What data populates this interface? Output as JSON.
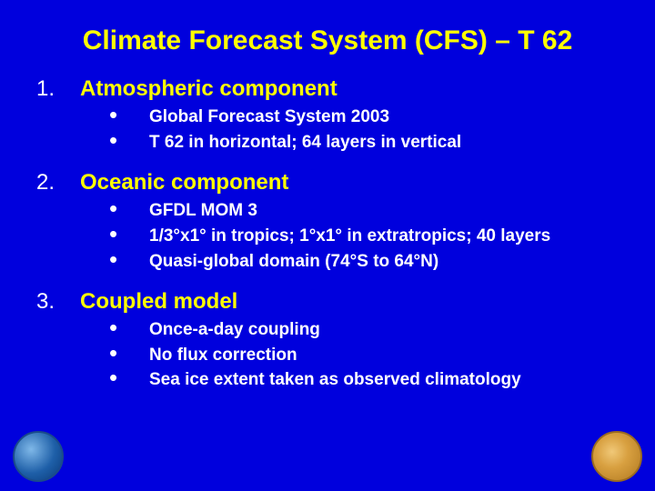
{
  "title": "Climate Forecast System (CFS) – T 62",
  "sections": [
    {
      "num": "1.",
      "heading": "Atmospheric component",
      "bullets": [
        "Global Forecast System 2003",
        "T 62 in horizontal; 64 layers in vertical"
      ]
    },
    {
      "num": "2.",
      "heading": "Oceanic component",
      "bullets": [
        "GFDL MOM 3",
        "1/3°x1° in tropics; 1°x1° in extratropics; 40 layers",
        "Quasi-global domain (74°S to 64°N)"
      ]
    },
    {
      "num": "3.",
      "heading": "Coupled model",
      "bullets": [
        "Once-a-day coupling",
        "No flux correction",
        "Sea ice extent taken as observed climatology"
      ]
    }
  ],
  "colors": {
    "background": "#0000dd",
    "title": "#ffff00",
    "heading": "#ffff00",
    "body": "#ffffff"
  },
  "fonts": {
    "title_size": 30,
    "heading_size": 24,
    "body_size": 19,
    "family": "Arial"
  }
}
